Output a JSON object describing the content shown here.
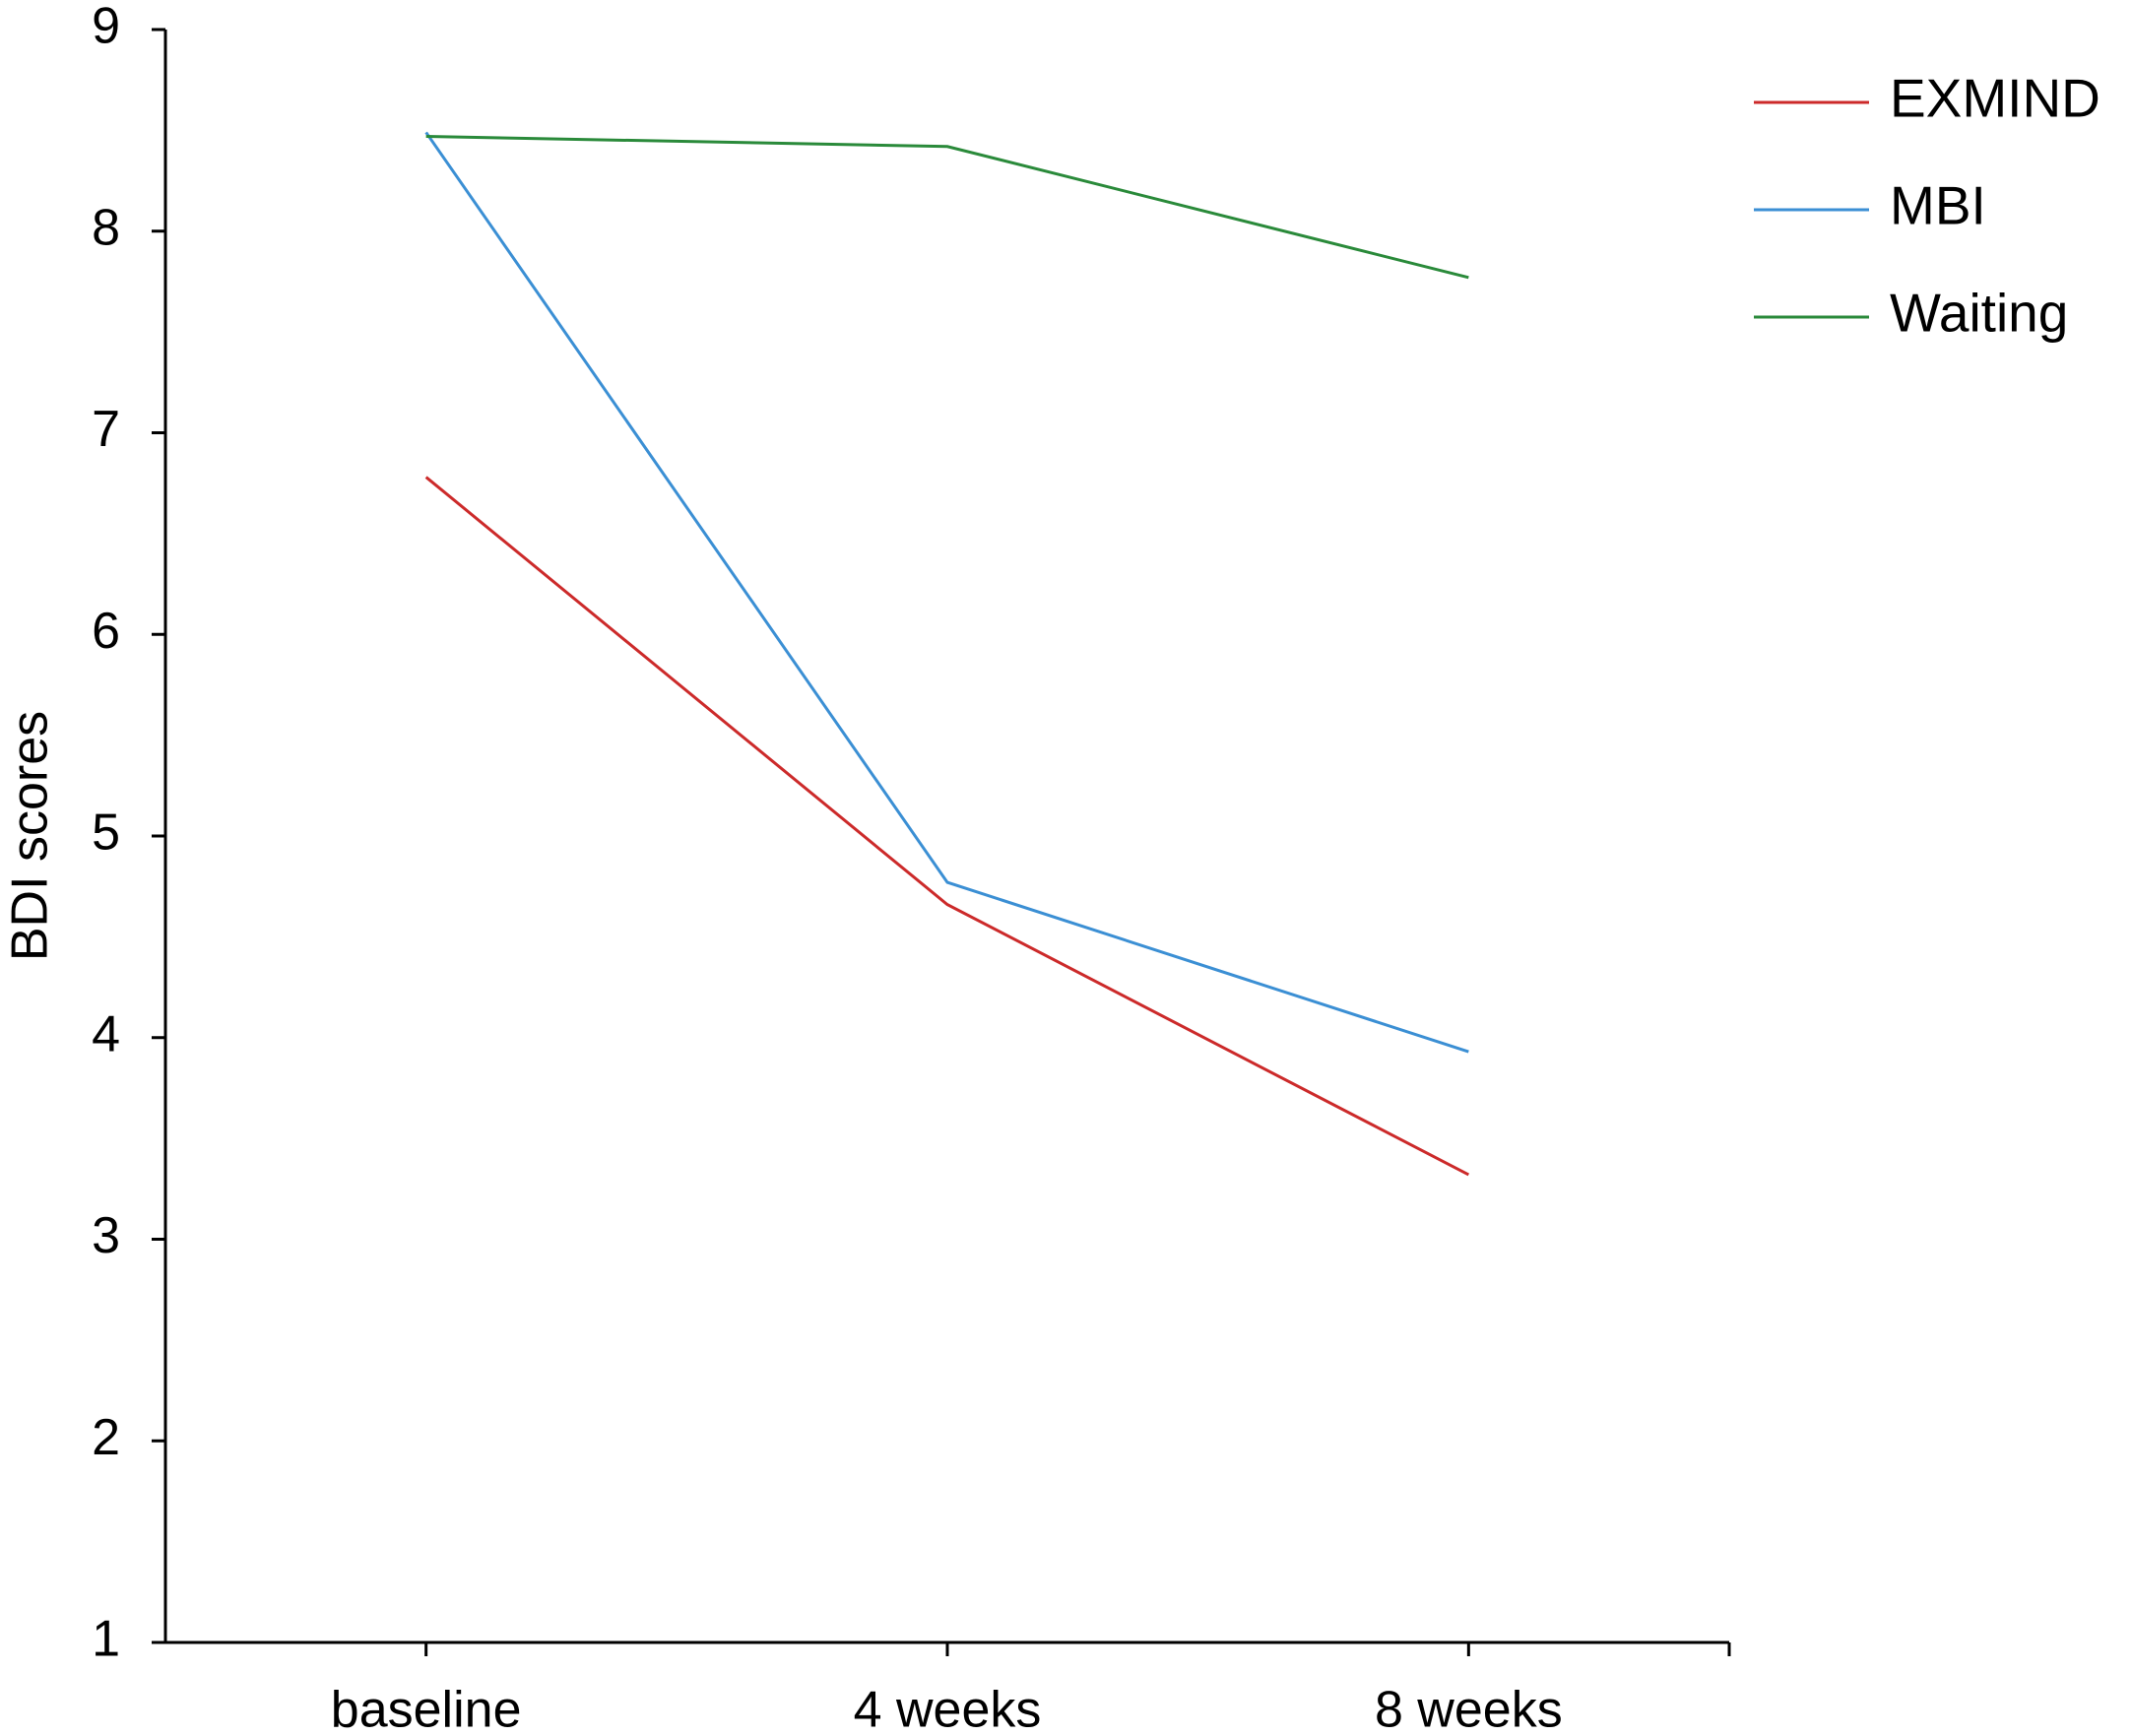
{
  "chart_data": {
    "type": "line",
    "y_label": "BDI scores",
    "categories": [
      "baseline",
      "4 weeks",
      "8 weeks"
    ],
    "series": [
      {
        "name": "EXMIND",
        "color": "#cc2a2a",
        "values": [
          6.78,
          4.66,
          3.32
        ]
      },
      {
        "name": "MBI",
        "color": "#3b8fd4",
        "values": [
          8.49,
          4.77,
          3.93
        ]
      },
      {
        "name": "Waiting",
        "color": "#2a8a3a",
        "values": [
          8.47,
          8.42,
          7.77
        ]
      }
    ],
    "ylim": [
      1,
      9
    ],
    "yticks": [
      1,
      2,
      3,
      4,
      5,
      6,
      7,
      8,
      9
    ],
    "legend": "upper-right",
    "grid": false
  }
}
